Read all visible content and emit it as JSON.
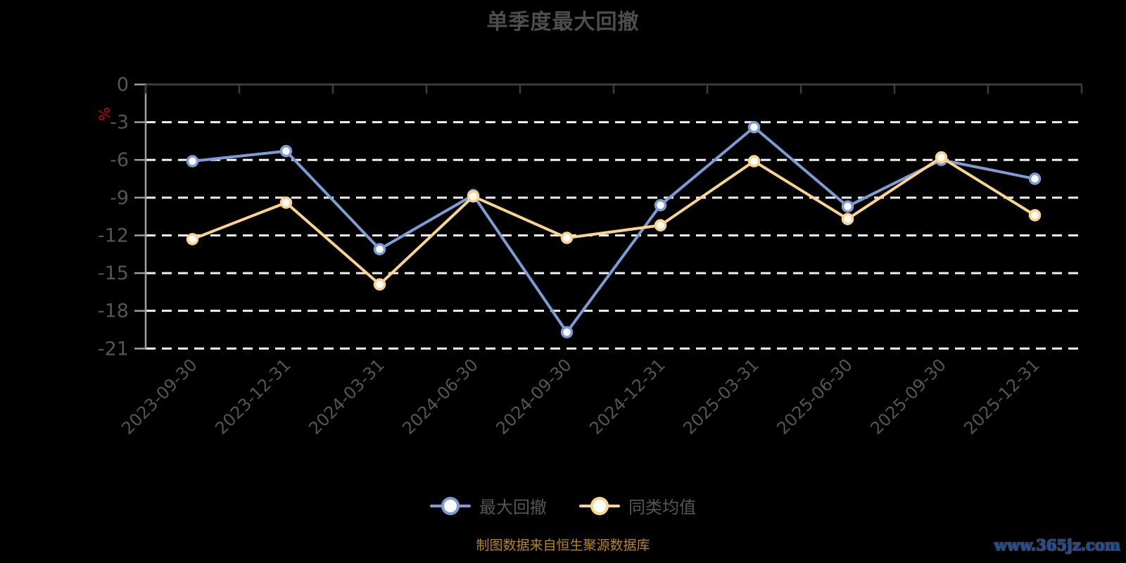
{
  "page": {
    "title": "单季度最大回撤",
    "source_note": "制图数据来自恒生聚源数据库",
    "watermark": "www.365jz.com"
  },
  "chart_data": {
    "type": "line",
    "title": "单季度最大回撤",
    "xlabel": "",
    "ylabel": "%",
    "ylim": [
      -21,
      0
    ],
    "yticks": [
      0,
      -3,
      -6,
      -9,
      -12,
      -15,
      -18,
      -21
    ],
    "grid": "horizontal-dashed-white",
    "legend_position": "bottom",
    "categories": [
      "2023-09-30",
      "2023-12-31",
      "2024-03-31",
      "2024-06-30",
      "2024-09-30",
      "2024-12-31",
      "2025-03-31",
      "2025-06-30",
      "2025-09-30",
      "2025-12-31"
    ],
    "series": [
      {
        "name": "最大回撤",
        "color": "#7d9bd4",
        "marker_fill": "#ffffff",
        "values": [
          -6.1,
          -5.3,
          -13.1,
          -8.8,
          -19.7,
          -9.6,
          -3.4,
          -9.7,
          -6.0,
          -7.5
        ]
      },
      {
        "name": "同类均值",
        "color": "#fad48c",
        "marker_fill": "#ffffff",
        "values": [
          -12.3,
          -9.4,
          -15.9,
          -8.9,
          -12.2,
          -11.2,
          -6.1,
          -10.7,
          -5.8,
          -10.4
        ]
      }
    ],
    "colors": {
      "background": "#000000",
      "grid_line": "#f0f0f0",
      "zero_axis_line": "#3c3c3c",
      "y_axis_line": "#9e9e9e",
      "axis_text": "#545454",
      "ylabel_text": "#cc0000",
      "legend_text": "#555555",
      "source_note_text": "#b8860b",
      "watermark_text": "#1e4fa0"
    }
  }
}
